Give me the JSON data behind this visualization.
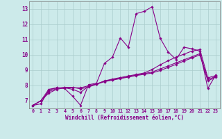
{
  "background_color": "#cceaea",
  "grid_color": "#aacccc",
  "line_color": "#880088",
  "xlabel": "Windchill (Refroidissement éolien,°C)",
  "xlim": [
    -0.5,
    23.5
  ],
  "ylim": [
    6.5,
    13.5
  ],
  "xtick_labels": [
    "0",
    "1",
    "2",
    "3",
    "4",
    "5",
    "6",
    "7",
    "8",
    "9",
    "10",
    "11",
    "12",
    "13",
    "14",
    "15",
    "16",
    "17",
    "18",
    "19",
    "20",
    "21",
    "22",
    "23"
  ],
  "ytick_labels": [
    "7",
    "8",
    "9",
    "10",
    "11",
    "12",
    "13"
  ],
  "yticks": [
    7,
    8,
    9,
    10,
    11,
    12,
    13
  ],
  "series": [
    [
      6.7,
      6.8,
      7.7,
      7.85,
      7.8,
      7.3,
      6.7,
      8.05,
      8.15,
      9.45,
      9.85,
      11.1,
      10.5,
      12.7,
      12.85,
      13.15,
      11.1,
      10.2,
      9.7,
      10.5,
      10.4,
      10.25,
      7.8,
      8.7
    ],
    [
      6.7,
      7.0,
      7.75,
      7.85,
      7.85,
      7.75,
      7.55,
      7.95,
      8.1,
      8.3,
      8.42,
      8.52,
      8.62,
      8.72,
      8.82,
      9.05,
      9.35,
      9.62,
      9.85,
      10.05,
      10.25,
      10.35,
      8.5,
      8.65
    ],
    [
      6.7,
      7.0,
      7.5,
      7.75,
      7.85,
      7.85,
      7.85,
      7.98,
      8.1,
      8.28,
      8.38,
      8.48,
      8.58,
      8.68,
      8.78,
      8.88,
      9.08,
      9.28,
      9.48,
      9.68,
      9.88,
      10.08,
      8.38,
      8.6
    ],
    [
      6.7,
      7.0,
      7.6,
      7.8,
      7.88,
      7.88,
      7.78,
      7.9,
      8.08,
      8.25,
      8.35,
      8.45,
      8.55,
      8.65,
      8.73,
      8.82,
      8.98,
      9.18,
      9.38,
      9.6,
      9.8,
      10.0,
      8.3,
      8.55
    ]
  ]
}
